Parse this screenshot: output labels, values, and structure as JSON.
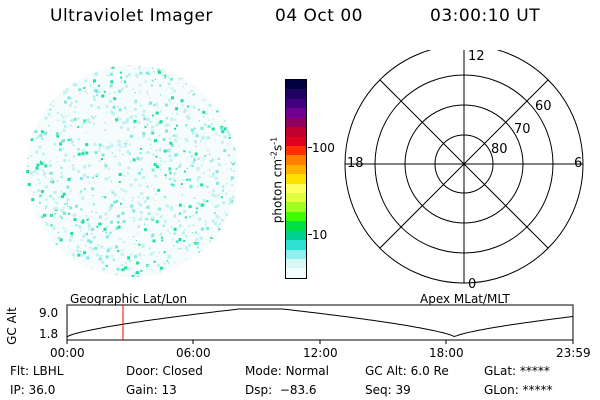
{
  "header": {
    "instrument": "Ultraviolet Imager",
    "date": "04 Oct 00",
    "time": "03:00:10 UT"
  },
  "colorbar": {
    "label_main": "photon cm",
    "label_exp1": "-2",
    "label_s": "s",
    "label_exp2": "-1",
    "tick_labels": [
      "100",
      "10"
    ],
    "colors_top_to_bottom": [
      "#000040",
      "#200060",
      "#400080",
      "#700090",
      "#900060",
      "#c00030",
      "#e00020",
      "#ff3000",
      "#ff8000",
      "#ffb000",
      "#ffe000",
      "#ffff60",
      "#e0ff40",
      "#a0ff20",
      "#40ff00",
      "#00e040",
      "#00d090",
      "#30e0d0",
      "#90f0f0",
      "#d8f8f8",
      "#f0ffff"
    ]
  },
  "polar": {
    "mlt_labels": {
      "top": "12",
      "left": "18",
      "right": "6",
      "bottom": "0"
    },
    "lat_labels": [
      "60",
      "70",
      "80"
    ]
  },
  "orbit_plot": {
    "left_title": "Geographic Lat/Lon",
    "right_title": "Apex MLat/MLT",
    "y_axis_label": "GC Alt",
    "y_ticks": [
      "9.0",
      "1.8"
    ],
    "x_ticks": [
      "00:00",
      "06:00",
      "12:00",
      "18:00",
      "23:59"
    ],
    "current_time_marker_color": "#ff0000"
  },
  "info": {
    "flt_label": "Flt:",
    "flt_value": "LBHL",
    "ip_label": "IP:",
    "ip_value": "36.0",
    "door_label": "Door:",
    "door_value": "Closed",
    "gain_label": "Gain:",
    "gain_value": "13",
    "mode_label": "Mode:",
    "mode_value": "Normal",
    "dsp_label": "Dsp:",
    "dsp_value": "−83.6",
    "gcalt_label": "GC Alt:",
    "gcalt_value": "6.0 Re",
    "seq_label": "Seq:",
    "seq_value": "39",
    "glat_label": "GLat:",
    "glat_value": "*****",
    "glon_label": "GLon:",
    "glon_value": "*****"
  },
  "colors": {
    "speckle_primary": "#20e0a0",
    "speckle_light": "#c0f0f0",
    "speckle_mid": "#80e8e0"
  }
}
